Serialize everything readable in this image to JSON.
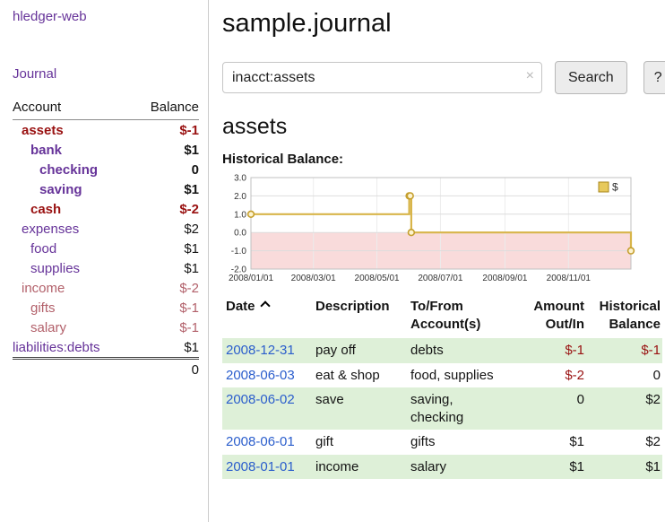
{
  "colors": {
    "link_purple": "#663399",
    "negative_strong": "#991111",
    "negative_soft": "#b2606a",
    "date_link_blue": "#2a5dcc",
    "row_shade_green": "#def0d8"
  },
  "sidebar": {
    "app_title": "hledger-web",
    "nav": {
      "journal": "Journal"
    },
    "accounts_table": {
      "account_header": "Account",
      "balance_header": "Balance",
      "rows": [
        {
          "name": "assets",
          "balance": "$-1",
          "depth": 1,
          "bold": true,
          "name_style": "negative",
          "balance_style": "negative"
        },
        {
          "name": "bank",
          "balance": "$1",
          "depth": 2,
          "bold": true,
          "name_style": "link",
          "balance_style": "normal"
        },
        {
          "name": "checking",
          "balance": "0",
          "depth": 3,
          "bold": true,
          "name_style": "link",
          "balance_style": "normal"
        },
        {
          "name": "saving",
          "balance": "$1",
          "depth": 3,
          "bold": true,
          "name_style": "link",
          "balance_style": "normal"
        },
        {
          "name": "cash",
          "balance": "$-2",
          "depth": 2,
          "bold": true,
          "name_style": "negative",
          "balance_style": "negative"
        },
        {
          "name": "expenses",
          "balance": "$2",
          "depth": 1,
          "bold": false,
          "name_style": "link",
          "balance_style": "normal"
        },
        {
          "name": "food",
          "balance": "$1",
          "depth": 2,
          "bold": false,
          "name_style": "link",
          "balance_style": "normal"
        },
        {
          "name": "supplies",
          "balance": "$1",
          "depth": 2,
          "bold": false,
          "name_style": "link",
          "balance_style": "normal"
        },
        {
          "name": "income",
          "balance": "$-2",
          "depth": 1,
          "bold": false,
          "name_style": "soft-negative",
          "balance_style": "soft-negative"
        },
        {
          "name": "gifts",
          "balance": "$-1",
          "depth": 2,
          "bold": false,
          "name_style": "soft-negative",
          "balance_style": "soft-negative"
        },
        {
          "name": "salary",
          "balance": "$-1",
          "depth": 2,
          "bold": false,
          "name_style": "soft-negative",
          "balance_style": "soft-negative"
        },
        {
          "name": "liabilities:debts",
          "balance": "$1",
          "depth": 0,
          "bold": false,
          "name_style": "link",
          "balance_style": "normal"
        }
      ],
      "total": "0"
    }
  },
  "main": {
    "title": "sample.journal",
    "search": {
      "value": "inacct:assets",
      "clear_icon": "×",
      "search_button": "Search",
      "help_button": "?"
    },
    "account_heading": "assets",
    "chart_title": "Historical Balance:",
    "register": {
      "headers": {
        "date": "Date",
        "sort_icon": "chevron-up",
        "description": "Description",
        "accounts": "To/From Account(s)",
        "amount": "Amount Out/In",
        "balance": "Historical Balance"
      },
      "rows": [
        {
          "date": "2008-12-31",
          "description": "pay off",
          "accounts": "debts",
          "amount": "$-1",
          "balance": "$-1",
          "amount_negative": true,
          "balance_negative": true,
          "shaded": true
        },
        {
          "date": "2008-06-03",
          "description": "eat & shop",
          "accounts": "food, supplies",
          "amount": "$-2",
          "balance": "0",
          "amount_negative": true,
          "balance_negative": false,
          "shaded": false
        },
        {
          "date": "2008-06-02",
          "description": "save",
          "accounts": "saving,\nchecking",
          "amount": "0",
          "balance": "$2",
          "amount_negative": false,
          "balance_negative": false,
          "shaded": true
        },
        {
          "date": "2008-06-01",
          "description": "gift",
          "accounts": "gifts",
          "amount": "$1",
          "balance": "$2",
          "amount_negative": false,
          "balance_negative": false,
          "shaded": false
        },
        {
          "date": "2008-01-01",
          "description": "income",
          "accounts": "salary",
          "amount": "$1",
          "balance": "$1",
          "amount_negative": false,
          "balance_negative": false,
          "shaded": true
        }
      ]
    }
  },
  "chart_data": {
    "type": "line",
    "step": true,
    "title": "Historical Balance:",
    "xlim": [
      0,
      365
    ],
    "ylim": [
      -2.0,
      3.0
    ],
    "y_ticks": [
      3.0,
      2.0,
      1.0,
      0.0,
      -1.0,
      -2.0
    ],
    "x_ticks": [
      {
        "label": "2008/01/01",
        "day": 0
      },
      {
        "label": "2008/03/01",
        "day": 60
      },
      {
        "label": "2008/05/01",
        "day": 121
      },
      {
        "label": "2008/07/01",
        "day": 182
      },
      {
        "label": "2008/09/01",
        "day": 244
      },
      {
        "label": "2008/11/01",
        "day": 305
      }
    ],
    "series": [
      {
        "name": "$",
        "points": [
          {
            "date": "2008-01-01",
            "day": 0,
            "value": 1.0
          },
          {
            "date": "2008-06-01",
            "day": 152,
            "value": 2.0
          },
          {
            "date": "2008-06-02",
            "day": 153,
            "value": 2.0
          },
          {
            "date": "2008-06-03",
            "day": 154,
            "value": 0.0
          },
          {
            "date": "2008-12-31",
            "day": 365,
            "value": -1.0
          }
        ]
      }
    ],
    "legend": {
      "label": "$",
      "position": "top-right"
    },
    "grid": true,
    "style": {
      "line_color": "#d8b54a",
      "marker_fill": "#fdf3cf",
      "marker_stroke": "#c59f2e",
      "negative_region_fill": "#f9dbdb",
      "legend_swatch_fill": "#e7c95c",
      "legend_swatch_stroke": "#a8871e",
      "grid_color": "#dddddd",
      "border_color": "#c0c0c0"
    }
  }
}
